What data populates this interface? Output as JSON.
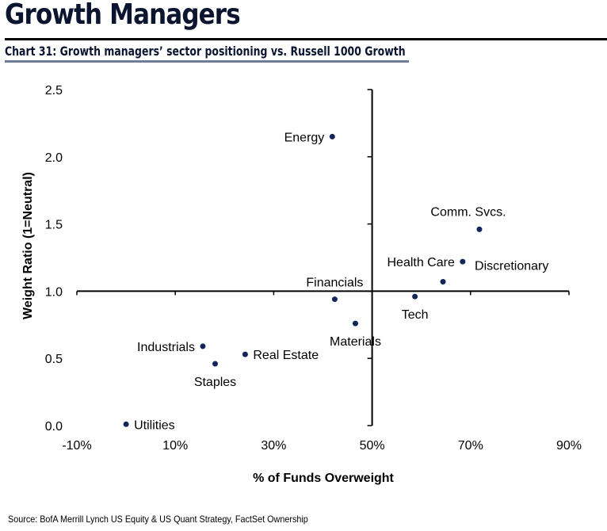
{
  "header": {
    "title": "Growth Managers",
    "subtitle": "Chart 31: Growth managers’ sector positioning vs. Russell 1000 Growth"
  },
  "footer": {
    "source": "Source:  BofA Merrill Lynch US Equity & US Quant Strategy, FactSet Ownership"
  },
  "colors": {
    "point": "#13265a",
    "axis": "#000000",
    "title": "#0b1530",
    "subtitle_rule": "#6e7d99"
  },
  "chart_data": {
    "type": "scatter",
    "title": "Chart 31: Growth managers’ sector positioning vs. Russell 1000 Growth",
    "xlabel": "% of Funds Overweight",
    "ylabel": "Weight Ratio (1=Neutral)",
    "xlim": [
      -10,
      90
    ],
    "ylim": [
      0,
      2.5
    ],
    "x_ticks": [
      -10,
      10,
      30,
      50,
      70,
      90
    ],
    "x_tick_labels": [
      "-10%",
      "10%",
      "30%",
      "50%",
      "70%",
      "90%"
    ],
    "y_ticks": [
      0,
      0.5,
      1.0,
      1.5,
      2.0,
      2.5
    ],
    "y_tick_labels": [
      "0.0",
      "0.5",
      "1.0",
      "1.5",
      "2.0",
      "2.5"
    ],
    "x_axis_crosses_y_at": 1.0,
    "y_axis_crosses_x_at": 50,
    "grid": false,
    "legend": "none",
    "points": [
      {
        "name": "Energy",
        "x": 41.9,
        "y": 2.15,
        "label_pos": "left"
      },
      {
        "name": "Comm. Svcs.",
        "x": 71.8,
        "y": 1.46,
        "label_pos": "above-left"
      },
      {
        "name": "Health Care",
        "x": 68.4,
        "y": 1.22,
        "label_pos": "left"
      },
      {
        "name": "Discretionary",
        "x": 64.4,
        "y": 1.07,
        "label_pos": "above-right"
      },
      {
        "name": "Tech",
        "x": 58.7,
        "y": 0.96,
        "label_pos": "below"
      },
      {
        "name": "Financials",
        "x": 42.4,
        "y": 0.94,
        "label_pos": "above"
      },
      {
        "name": "Materials",
        "x": 46.6,
        "y": 0.76,
        "label_pos": "below"
      },
      {
        "name": "Industrials",
        "x": 15.6,
        "y": 0.59,
        "label_pos": "left"
      },
      {
        "name": "Real Estate",
        "x": 24.2,
        "y": 0.53,
        "label_pos": "right"
      },
      {
        "name": "Staples",
        "x": 18.1,
        "y": 0.46,
        "label_pos": "below"
      },
      {
        "name": "Utilities",
        "x": 0.0,
        "y": 0.01,
        "label_pos": "right"
      }
    ]
  }
}
